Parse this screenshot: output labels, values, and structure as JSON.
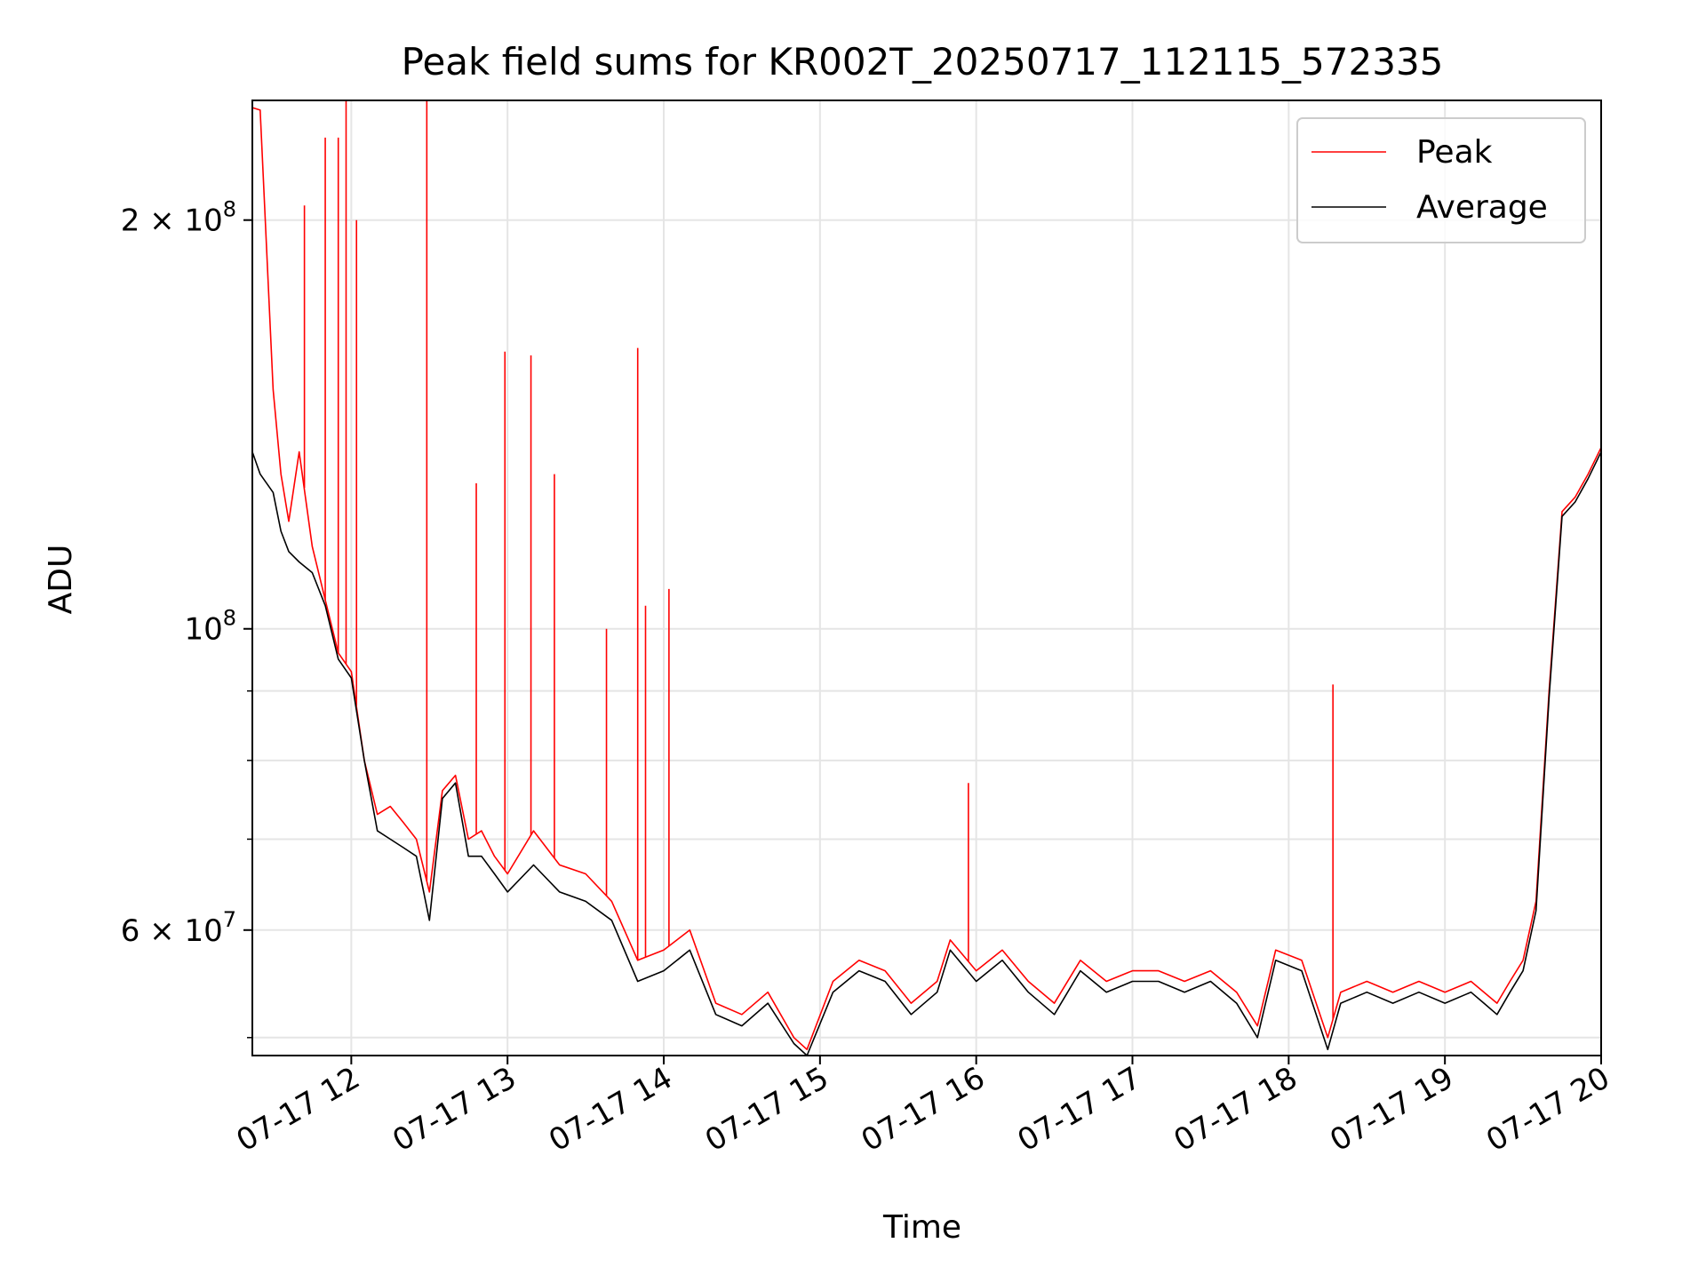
{
  "chart_data": {
    "type": "line",
    "title": "Peak field sums for KR002T_20250717_112115_572335",
    "xlabel": "Time",
    "ylabel": "ADU",
    "y_scale": "log",
    "grid": true,
    "legend_placement": "top-right",
    "xlim": [
      "2025-07-17 11:22",
      "2025-07-17 20:00"
    ],
    "ylim": [
      48500000,
      245000000
    ],
    "x_ticks": [
      {
        "value": "2025-07-17 12:00",
        "label": "07-17 12"
      },
      {
        "value": "2025-07-17 13:00",
        "label": "07-17 13"
      },
      {
        "value": "2025-07-17 14:00",
        "label": "07-17 14"
      },
      {
        "value": "2025-07-17 15:00",
        "label": "07-17 15"
      },
      {
        "value": "2025-07-17 16:00",
        "label": "07-17 16"
      },
      {
        "value": "2025-07-17 17:00",
        "label": "07-17 17"
      },
      {
        "value": "2025-07-17 18:00",
        "label": "07-17 18"
      },
      {
        "value": "2025-07-17 19:00",
        "label": "07-17 19"
      },
      {
        "value": "2025-07-17 20:00",
        "label": "07-17 20"
      }
    ],
    "y_major_ticks": [
      {
        "value": 60000000,
        "mantissa": "6",
        "exponent": "7"
      },
      {
        "value": 100000000,
        "mantissa": "",
        "exponent": "8"
      },
      {
        "value": 200000000,
        "mantissa": "2",
        "exponent": "8"
      }
    ],
    "y_minor_ticks": [
      50000000,
      70000000,
      80000000,
      90000000
    ],
    "series": [
      {
        "name": "Peak",
        "color": "#ff0000",
        "x": [
          "2025-07-17 11:22",
          "2025-07-17 11:25",
          "2025-07-17 11:30",
          "2025-07-17 11:33",
          "2025-07-17 11:36",
          "2025-07-17 11:40",
          "2025-07-17 11:45",
          "2025-07-17 11:50",
          "2025-07-17 11:55",
          "2025-07-17 12:00",
          "2025-07-17 12:05",
          "2025-07-17 12:10",
          "2025-07-17 12:15",
          "2025-07-17 12:20",
          "2025-07-17 12:25",
          "2025-07-17 12:30",
          "2025-07-17 12:35",
          "2025-07-17 12:40",
          "2025-07-17 12:45",
          "2025-07-17 12:50",
          "2025-07-17 12:55",
          "2025-07-17 13:00",
          "2025-07-17 13:10",
          "2025-07-17 13:20",
          "2025-07-17 13:30",
          "2025-07-17 13:40",
          "2025-07-17 13:50",
          "2025-07-17 14:00",
          "2025-07-17 14:10",
          "2025-07-17 14:20",
          "2025-07-17 14:30",
          "2025-07-17 14:40",
          "2025-07-17 14:50",
          "2025-07-17 14:55",
          "2025-07-17 15:05",
          "2025-07-17 15:15",
          "2025-07-17 15:25",
          "2025-07-17 15:35",
          "2025-07-17 15:45",
          "2025-07-17 15:50",
          "2025-07-17 16:00",
          "2025-07-17 16:10",
          "2025-07-17 16:20",
          "2025-07-17 16:30",
          "2025-07-17 16:40",
          "2025-07-17 16:50",
          "2025-07-17 17:00",
          "2025-07-17 17:10",
          "2025-07-17 17:20",
          "2025-07-17 17:30",
          "2025-07-17 17:40",
          "2025-07-17 17:48",
          "2025-07-17 17:55",
          "2025-07-17 18:05",
          "2025-07-17 18:15",
          "2025-07-17 18:20",
          "2025-07-17 18:30",
          "2025-07-17 18:40",
          "2025-07-17 18:50",
          "2025-07-17 19:00",
          "2025-07-17 19:10",
          "2025-07-17 19:15",
          "2025-07-17 19:20",
          "2025-07-17 19:25",
          "2025-07-17 19:30",
          "2025-07-17 19:35",
          "2025-07-17 19:40",
          "2025-07-17 19:45",
          "2025-07-17 19:50",
          "2025-07-17 19:55",
          "2025-07-17 20:00"
        ],
        "y": [
          242000000,
          241000000,
          150000000,
          130000000,
          120000000,
          135000000,
          115000000,
          105000000,
          96000000,
          93000000,
          80000000,
          73000000,
          74000000,
          72000000,
          70000000,
          64000000,
          76000000,
          78000000,
          70000000,
          71000000,
          68000000,
          66000000,
          71000000,
          67000000,
          66000000,
          63000000,
          57000000,
          58000000,
          60000000,
          53000000,
          52000000,
          54000000,
          50000000,
          49000000,
          55000000,
          57000000,
          56000000,
          53000000,
          55000000,
          59000000,
          56000000,
          58000000,
          55000000,
          53000000,
          57000000,
          55000000,
          56000000,
          56000000,
          55000000,
          56000000,
          54000000,
          51000000,
          58000000,
          57000000,
          50000000,
          54000000,
          55000000,
          54000000,
          55000000,
          54000000,
          55000000,
          54000000,
          53000000,
          55000000,
          57000000,
          63000000,
          90000000,
          122000000,
          125000000,
          130000000,
          136000000
        ],
        "spikes": [
          {
            "x": "2025-07-17 11:42",
            "y": 205000000
          },
          {
            "x": "2025-07-17 11:50",
            "y": 230000000
          },
          {
            "x": "2025-07-17 11:55",
            "y": 230000000
          },
          {
            "x": "2025-07-17 11:58",
            "y": 245000000
          },
          {
            "x": "2025-07-17 12:02",
            "y": 200000000
          },
          {
            "x": "2025-07-17 12:29",
            "y": 245000000
          },
          {
            "x": "2025-07-17 12:48",
            "y": 128000000
          },
          {
            "x": "2025-07-17 12:59",
            "y": 160000000
          },
          {
            "x": "2025-07-17 13:09",
            "y": 159000000
          },
          {
            "x": "2025-07-17 13:18",
            "y": 130000000
          },
          {
            "x": "2025-07-17 13:38",
            "y": 100000000
          },
          {
            "x": "2025-07-17 13:50",
            "y": 161000000
          },
          {
            "x": "2025-07-17 13:53",
            "y": 104000000
          },
          {
            "x": "2025-07-17 14:02",
            "y": 107000000
          },
          {
            "x": "2025-07-17 15:57",
            "y": 77000000
          },
          {
            "x": "2025-07-17 18:17",
            "y": 91000000
          }
        ]
      },
      {
        "name": "Average",
        "color": "#000000",
        "x": [
          "2025-07-17 11:22",
          "2025-07-17 11:25",
          "2025-07-17 11:30",
          "2025-07-17 11:33",
          "2025-07-17 11:36",
          "2025-07-17 11:40",
          "2025-07-17 11:45",
          "2025-07-17 11:50",
          "2025-07-17 11:55",
          "2025-07-17 12:00",
          "2025-07-17 12:05",
          "2025-07-17 12:10",
          "2025-07-17 12:15",
          "2025-07-17 12:20",
          "2025-07-17 12:25",
          "2025-07-17 12:30",
          "2025-07-17 12:35",
          "2025-07-17 12:40",
          "2025-07-17 12:45",
          "2025-07-17 12:50",
          "2025-07-17 12:55",
          "2025-07-17 13:00",
          "2025-07-17 13:10",
          "2025-07-17 13:20",
          "2025-07-17 13:30",
          "2025-07-17 13:40",
          "2025-07-17 13:50",
          "2025-07-17 14:00",
          "2025-07-17 14:10",
          "2025-07-17 14:20",
          "2025-07-17 14:30",
          "2025-07-17 14:40",
          "2025-07-17 14:50",
          "2025-07-17 14:55",
          "2025-07-17 15:05",
          "2025-07-17 15:15",
          "2025-07-17 15:25",
          "2025-07-17 15:35",
          "2025-07-17 15:45",
          "2025-07-17 15:50",
          "2025-07-17 16:00",
          "2025-07-17 16:10",
          "2025-07-17 16:20",
          "2025-07-17 16:30",
          "2025-07-17 16:40",
          "2025-07-17 16:50",
          "2025-07-17 17:00",
          "2025-07-17 17:10",
          "2025-07-17 17:20",
          "2025-07-17 17:30",
          "2025-07-17 17:40",
          "2025-07-17 17:48",
          "2025-07-17 17:55",
          "2025-07-17 18:05",
          "2025-07-17 18:15",
          "2025-07-17 18:20",
          "2025-07-17 18:30",
          "2025-07-17 18:40",
          "2025-07-17 18:50",
          "2025-07-17 19:00",
          "2025-07-17 19:10",
          "2025-07-17 19:15",
          "2025-07-17 19:20",
          "2025-07-17 19:25",
          "2025-07-17 19:30",
          "2025-07-17 19:35",
          "2025-07-17 19:40",
          "2025-07-17 19:45",
          "2025-07-17 19:50",
          "2025-07-17 19:55",
          "2025-07-17 20:00"
        ],
        "y": [
          135000000,
          130000000,
          126000000,
          118000000,
          114000000,
          112000000,
          110000000,
          104000000,
          95000000,
          92000000,
          80000000,
          71000000,
          70000000,
          69000000,
          68000000,
          61000000,
          75000000,
          77000000,
          68000000,
          68000000,
          66000000,
          64000000,
          67000000,
          64000000,
          63000000,
          61000000,
          55000000,
          56000000,
          58000000,
          52000000,
          51000000,
          53000000,
          49500000,
          48500000,
          54000000,
          56000000,
          55000000,
          52000000,
          54000000,
          58000000,
          55000000,
          57000000,
          54000000,
          52000000,
          56000000,
          54000000,
          55000000,
          55000000,
          54000000,
          55000000,
          53000000,
          50000000,
          57000000,
          56000000,
          49000000,
          53000000,
          54000000,
          53000000,
          54000000,
          53000000,
          54000000,
          53000000,
          52000000,
          54000000,
          56000000,
          62000000,
          89000000,
          121000000,
          124000000,
          129000000,
          135000000
        ]
      }
    ]
  }
}
